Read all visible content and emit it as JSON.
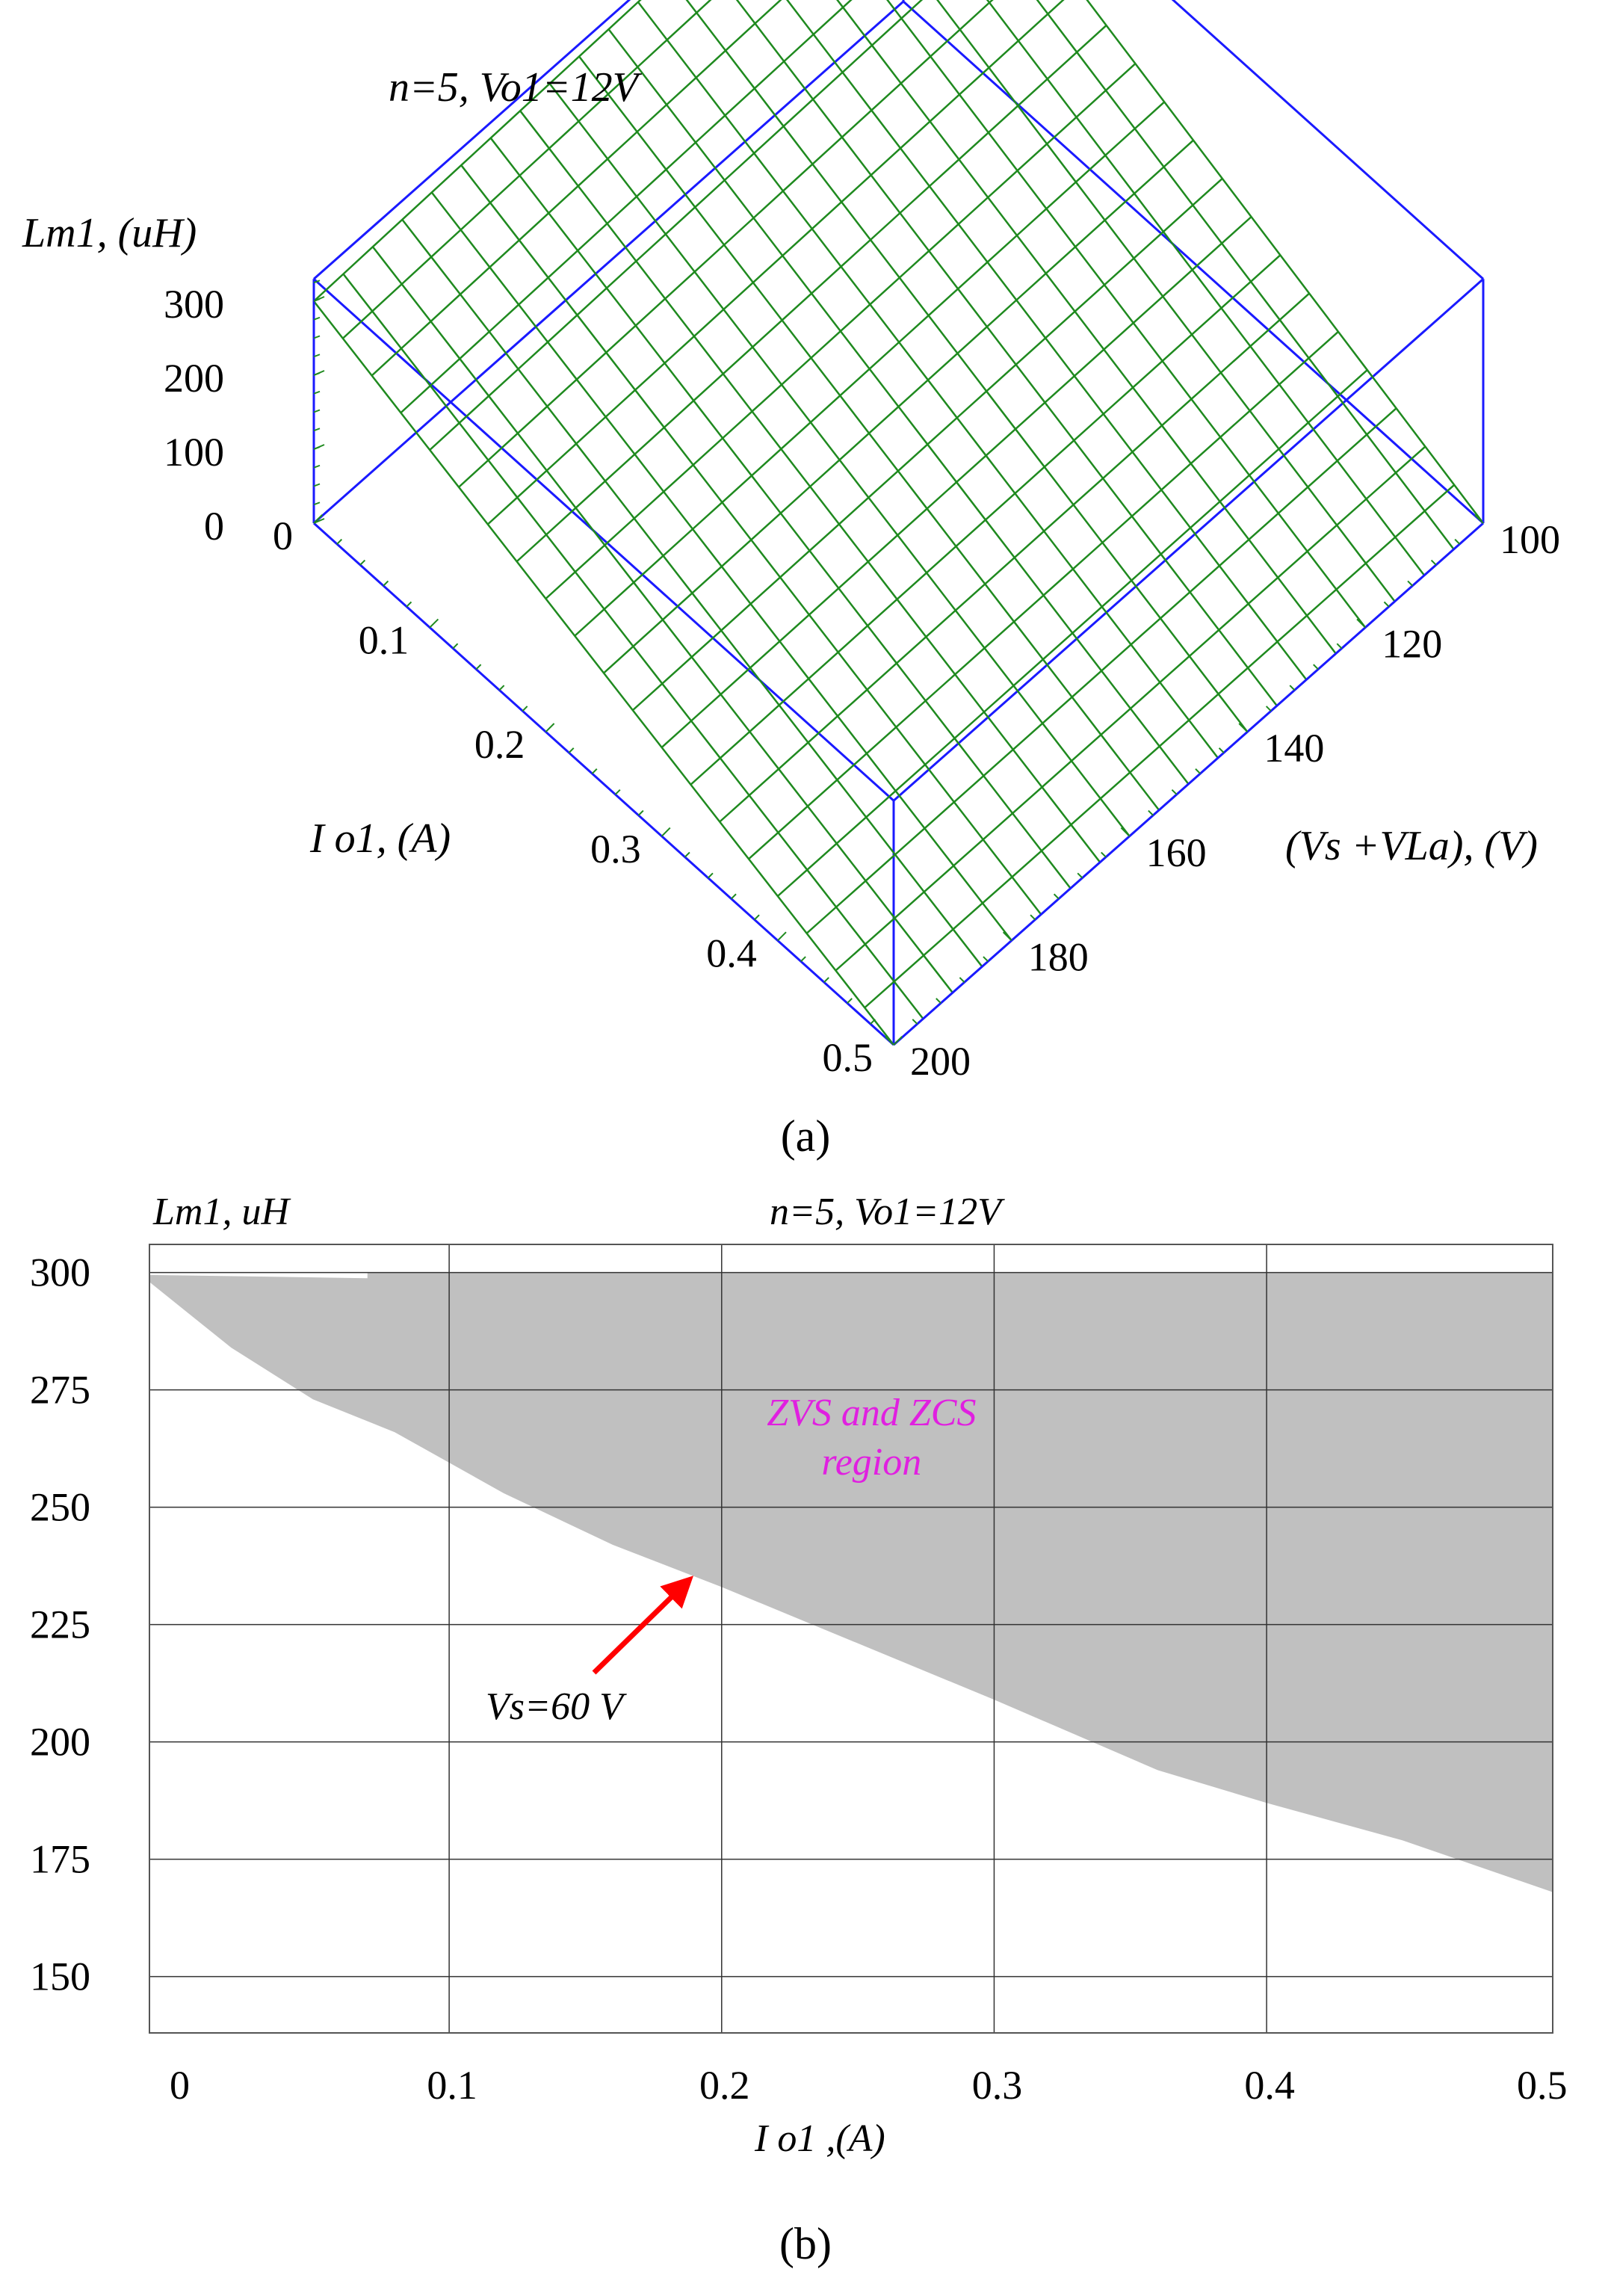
{
  "chart_data": [
    {
      "type": "surface3d",
      "title": "n=5, Vo1=12V",
      "xlabel": "I o1, (A)",
      "ylabel": "(Vs +VLa), (V)",
      "zlabel": "Lm1, (uH)",
      "x_ticks": [
        "0",
        "0.1",
        "0.2",
        "0.3",
        "0.4",
        "0.5"
      ],
      "y_ticks": [
        "100",
        "120",
        "140",
        "160",
        "180",
        "200"
      ],
      "z_ticks": [
        "0",
        "100",
        "200",
        "300"
      ],
      "xlim": [
        0,
        0.5
      ],
      "ylim": [
        100,
        200
      ],
      "zlim": [
        0,
        330
      ],
      "surface_corners": [
        {
          "io": 0,
          "v": 100,
          "lm": 300
        },
        {
          "io": 0,
          "v": 200,
          "lm": 330
        },
        {
          "io": 0.5,
          "v": 100,
          "lm": 0
        },
        {
          "io": 0.5,
          "v": 200,
          "lm": 0
        }
      ],
      "panel_label": "(a)",
      "colors": {
        "mesh": "#1f8a1f",
        "box": "#1a1aff"
      }
    },
    {
      "type": "area",
      "title": "n=5, Vo1=12V",
      "xlabel": "I o1 ,(A)",
      "ylabel": "Lm1, uH",
      "x_ticks": [
        "0",
        "0.1",
        "0.2",
        "0.3",
        "0.4",
        "0.5"
      ],
      "y_ticks": [
        "300",
        "275",
        "250",
        "225",
        "200",
        "175",
        "150"
      ],
      "xlim": [
        -0.01,
        0.505
      ],
      "ylim": [
        138,
        306
      ],
      "grid": true,
      "boundary": {
        "x": [
          -0.01,
          0.005,
          0.02,
          0.05,
          0.08,
          0.12,
          0.16,
          0.2,
          0.25,
          0.3,
          0.36,
          0.4,
          0.45,
          0.505
        ],
        "y": [
          298,
          291,
          284,
          273,
          266,
          253,
          242,
          233,
          221,
          209,
          194,
          187,
          179,
          168
        ]
      },
      "region_label": "ZVS and ZCS region",
      "annotation": "Vs=60 V",
      "panel_label": "(b)",
      "colors": {
        "region": "#c0c0c0",
        "region_label": "#e020e0",
        "arrow": "#ff0000"
      }
    }
  ]
}
